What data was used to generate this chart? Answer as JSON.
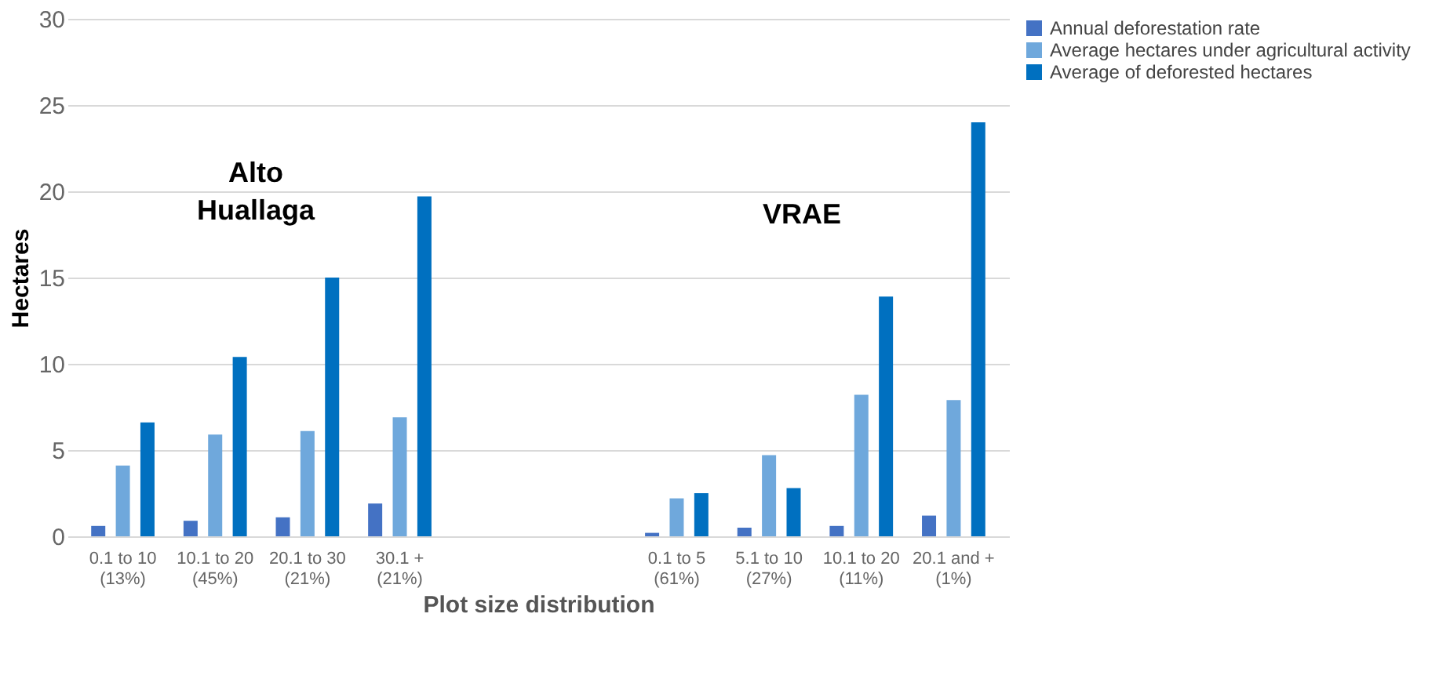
{
  "chart_data": {
    "type": "bar",
    "xlabel": "Plot size distribution",
    "ylabel": "Hectares",
    "categories": [
      "0.1 to 10 (13%)",
      "10.1 to 20 (45%)",
      "20.1 to 30 (21%)",
      "30.1 + (21%)",
      null,
      null,
      "0.1 to 5 (61%)",
      "5.1 to 10 (27%)",
      "10.1 to 20 (11%)",
      "20.1 and + (1%)"
    ],
    "series": [
      {
        "name": "Annual deforestation rate",
        "color": "#4472c4",
        "values": [
          0.6,
          0.9,
          1.1,
          1.9,
          null,
          null,
          0.2,
          0.5,
          0.6,
          1.2
        ]
      },
      {
        "name": "Average hectares under agricultural activity",
        "color": "#6fa8dc",
        "values": [
          4.1,
          5.9,
          6.1,
          6.9,
          null,
          null,
          2.2,
          4.7,
          8.2,
          7.9
        ]
      },
      {
        "name": "Average of deforested hectares",
        "color": "#0070c0",
        "values": [
          6.6,
          10.4,
          15.0,
          19.7,
          null,
          null,
          2.5,
          2.8,
          13.9,
          24.0
        ]
      }
    ],
    "annotations": [
      "Alto Huallaga",
      "VRAE"
    ],
    "ylim": [
      0,
      30
    ],
    "yticks": [
      0,
      5,
      10,
      15,
      20,
      25,
      30
    ],
    "grid": "y",
    "legend": "top right"
  }
}
